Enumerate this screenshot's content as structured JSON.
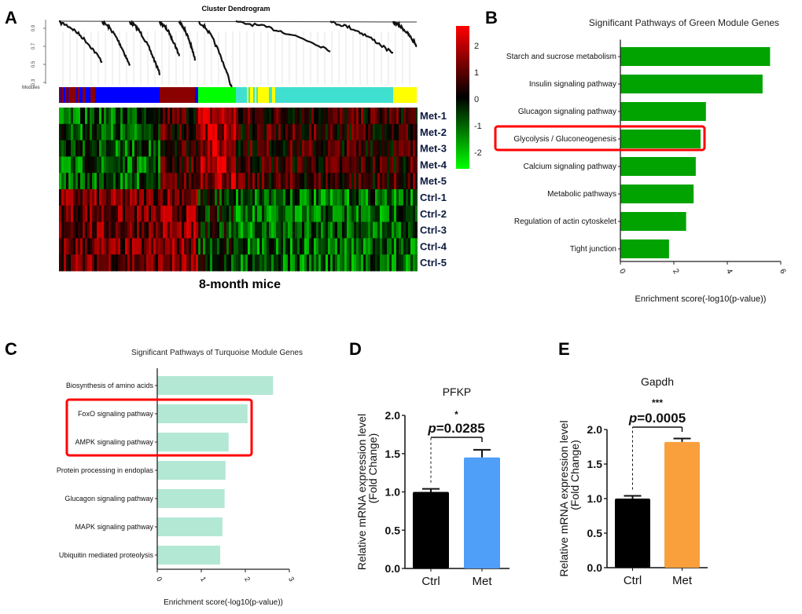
{
  "panels": {
    "a": "A",
    "b": "B",
    "c": "C",
    "d": "D",
    "e": "E"
  },
  "panel_a": {
    "title": "Cluster Dendrogram",
    "dendro_yticks": [
      "0.3",
      "0.5",
      "0.7",
      "0.9"
    ],
    "modules_label": "Modules",
    "module_colors": [
      "#8b0000",
      "#0000ff",
      "#8b0000",
      "#0000ff",
      "#00ff00",
      "#ffff00",
      "#40e0d0",
      "#ffff00"
    ],
    "rows": [
      "Met-1",
      "Met-2",
      "Met-3",
      "Met-4",
      "Met-5",
      "Ctrl-1",
      "Ctrl-2",
      "Ctrl-3",
      "Ctrl-4",
      "Ctrl-5"
    ],
    "colorbar_ticks": [
      "2",
      "1",
      "0",
      "-1",
      "-2"
    ],
    "colorbar_range": [
      -2.5,
      2.5
    ],
    "colorbar_colors": {
      "high": "#ff0000",
      "mid": "#000000",
      "low": "#00ff00"
    },
    "caption": "8-month mice"
  },
  "chart_data": [
    {
      "type": "bar",
      "orientation": "horizontal",
      "title": "Significant Pathways of Green Module Genes",
      "categories": [
        "Starch and sucrose metabolism",
        "Insulin signaling pathway",
        "Glucagon signaling pathway",
        "Glycolysis / Gluconeogenesis",
        "Calcium signaling pathway",
        "Metabolic pathways",
        "Regulation of actin cytoskelet",
        "Tight junction"
      ],
      "values": [
        5.6,
        5.32,
        3.2,
        3.0,
        2.82,
        2.74,
        2.46,
        1.82
      ],
      "xlabel": "Enrichment score(-log10(p-value))",
      "xlim": [
        0,
        6
      ],
      "xticks": [
        "0",
        "2",
        "4",
        "6"
      ],
      "color": "#00a300",
      "highlighted": [
        "Glycolysis / Gluconeogenesis"
      ],
      "highlight_color": "#ff0000"
    },
    {
      "type": "bar",
      "orientation": "horizontal",
      "title": "Significant Pathways of Turquoise Module Genes",
      "categories": [
        "Biosynthesis of amino acids",
        "FoxO signaling pathway",
        "AMPK signaling pathway",
        "Protein processing in endoplas",
        "Glucagon signaling pathway",
        "MAPK signaling pathway",
        "Ubiquitin mediated proteolysis"
      ],
      "values": [
        2.63,
        2.05,
        1.62,
        1.55,
        1.53,
        1.48,
        1.43
      ],
      "xlabel": "Enrichment score(-log10(p-value))",
      "xlim": [
        0,
        3
      ],
      "xticks": [
        "0",
        "1",
        "2",
        "3"
      ],
      "color": "#b3e8d4",
      "highlighted": [
        "FoxO signaling pathway",
        "AMPK signaling pathway"
      ],
      "highlight_color": "#ff0000"
    },
    {
      "type": "bar",
      "title": "PFKP",
      "categories": [
        "Ctrl",
        "Met"
      ],
      "values": [
        1.0,
        1.45
      ],
      "errors": [
        0.04,
        0.1
      ],
      "colors": [
        "#000000",
        "#4f9ef8"
      ],
      "ylabel": "Relative  mRNA expression level",
      "ylabel2": "(Fold Change)",
      "ylim": [
        0,
        2.0
      ],
      "yticks": [
        "0.0",
        "0.5",
        "1.0",
        "1.5",
        "2.0"
      ],
      "significance": "*",
      "p_value": "=0.0285",
      "p_symbol": "p"
    },
    {
      "type": "bar",
      "title": "Gapdh",
      "categories": [
        "Ctrl",
        "Met"
      ],
      "values": [
        1.0,
        1.82
      ],
      "errors": [
        0.04,
        0.05
      ],
      "colors": [
        "#000000",
        "#f9a03c"
      ],
      "ylabel": "Relative  mRNA expression level",
      "ylabel2": "(Fold Change)",
      "ylim": [
        0,
        2.0
      ],
      "yticks": [
        "0.0",
        "0.5",
        "1.0",
        "1.5",
        "2.0"
      ],
      "significance": "***",
      "p_value": "=0.0005",
      "p_symbol": "p"
    }
  ]
}
